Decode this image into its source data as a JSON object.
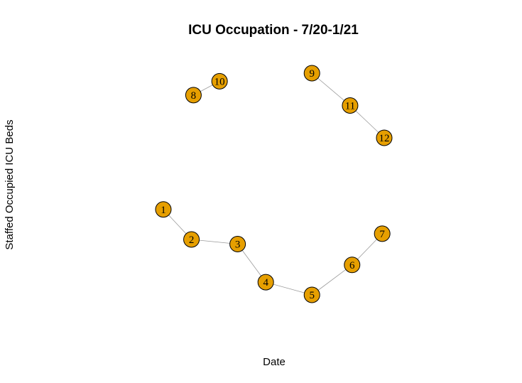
{
  "chart_data": {
    "type": "scatter",
    "title": "ICU Occupation - 7/20-1/21",
    "xlabel": "Date",
    "ylabel": "Staffed Occupied ICU Beds",
    "node_color": "#E69F00",
    "edge_color": "#9a9a9a",
    "nodes": [
      {
        "label": "1",
        "x": -1.0,
        "y": -0.03
      },
      {
        "label": "2",
        "x": -0.86,
        "y": -0.29
      },
      {
        "label": "3",
        "x": -0.63,
        "y": -0.33
      },
      {
        "label": "4",
        "x": -0.49,
        "y": -0.66
      },
      {
        "label": "5",
        "x": -0.26,
        "y": -0.77
      },
      {
        "label": "6",
        "x": -0.06,
        "y": -0.51
      },
      {
        "label": "7",
        "x": 0.09,
        "y": -0.24
      },
      {
        "label": "8",
        "x": -0.85,
        "y": 0.96
      },
      {
        "label": "9",
        "x": -0.26,
        "y": 1.15
      },
      {
        "label": "10",
        "x": -0.72,
        "y": 1.08
      },
      {
        "label": "11",
        "x": -0.07,
        "y": 0.87
      },
      {
        "label": "12",
        "x": 0.1,
        "y": 0.59
      }
    ],
    "edges": [
      [
        "1",
        "2"
      ],
      [
        "2",
        "3"
      ],
      [
        "3",
        "4"
      ],
      [
        "4",
        "5"
      ],
      [
        "5",
        "6"
      ],
      [
        "6",
        "7"
      ],
      [
        "8",
        "10"
      ],
      [
        "9",
        "11"
      ],
      [
        "11",
        "12"
      ]
    ],
    "xlim": [
      -1.0,
      0.1
    ],
    "ylim": [
      -0.77,
      1.15
    ]
  }
}
